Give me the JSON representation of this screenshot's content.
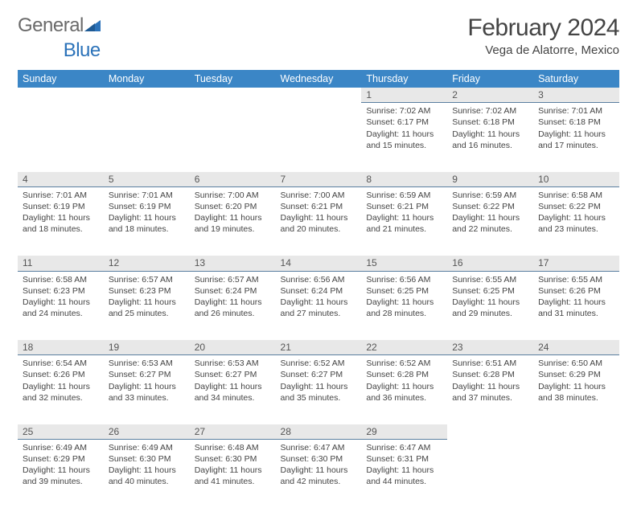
{
  "brand": {
    "part1": "General",
    "part2": "Blue"
  },
  "title": "February 2024",
  "location": "Vega de Alatorre, Mexico",
  "colors": {
    "header_bg": "#3b86c6",
    "header_text": "#ffffff",
    "daynum_bg": "#e8e8e8",
    "daynum_border": "#5a7fa0",
    "text": "#444444",
    "brand_blue": "#2b72b9",
    "brand_gray": "#6a6a6a",
    "page_bg": "#ffffff"
  },
  "daysOfWeek": [
    "Sunday",
    "Monday",
    "Tuesday",
    "Wednesday",
    "Thursday",
    "Friday",
    "Saturday"
  ],
  "weeks": [
    [
      null,
      null,
      null,
      null,
      {
        "n": "1",
        "sr": "Sunrise: 7:02 AM",
        "ss": "Sunset: 6:17 PM",
        "dl1": "Daylight: 11 hours",
        "dl2": "and 15 minutes."
      },
      {
        "n": "2",
        "sr": "Sunrise: 7:02 AM",
        "ss": "Sunset: 6:18 PM",
        "dl1": "Daylight: 11 hours",
        "dl2": "and 16 minutes."
      },
      {
        "n": "3",
        "sr": "Sunrise: 7:01 AM",
        "ss": "Sunset: 6:18 PM",
        "dl1": "Daylight: 11 hours",
        "dl2": "and 17 minutes."
      }
    ],
    [
      {
        "n": "4",
        "sr": "Sunrise: 7:01 AM",
        "ss": "Sunset: 6:19 PM",
        "dl1": "Daylight: 11 hours",
        "dl2": "and 18 minutes."
      },
      {
        "n": "5",
        "sr": "Sunrise: 7:01 AM",
        "ss": "Sunset: 6:19 PM",
        "dl1": "Daylight: 11 hours",
        "dl2": "and 18 minutes."
      },
      {
        "n": "6",
        "sr": "Sunrise: 7:00 AM",
        "ss": "Sunset: 6:20 PM",
        "dl1": "Daylight: 11 hours",
        "dl2": "and 19 minutes."
      },
      {
        "n": "7",
        "sr": "Sunrise: 7:00 AM",
        "ss": "Sunset: 6:21 PM",
        "dl1": "Daylight: 11 hours",
        "dl2": "and 20 minutes."
      },
      {
        "n": "8",
        "sr": "Sunrise: 6:59 AM",
        "ss": "Sunset: 6:21 PM",
        "dl1": "Daylight: 11 hours",
        "dl2": "and 21 minutes."
      },
      {
        "n": "9",
        "sr": "Sunrise: 6:59 AM",
        "ss": "Sunset: 6:22 PM",
        "dl1": "Daylight: 11 hours",
        "dl2": "and 22 minutes."
      },
      {
        "n": "10",
        "sr": "Sunrise: 6:58 AM",
        "ss": "Sunset: 6:22 PM",
        "dl1": "Daylight: 11 hours",
        "dl2": "and 23 minutes."
      }
    ],
    [
      {
        "n": "11",
        "sr": "Sunrise: 6:58 AM",
        "ss": "Sunset: 6:23 PM",
        "dl1": "Daylight: 11 hours",
        "dl2": "and 24 minutes."
      },
      {
        "n": "12",
        "sr": "Sunrise: 6:57 AM",
        "ss": "Sunset: 6:23 PM",
        "dl1": "Daylight: 11 hours",
        "dl2": "and 25 minutes."
      },
      {
        "n": "13",
        "sr": "Sunrise: 6:57 AM",
        "ss": "Sunset: 6:24 PM",
        "dl1": "Daylight: 11 hours",
        "dl2": "and 26 minutes."
      },
      {
        "n": "14",
        "sr": "Sunrise: 6:56 AM",
        "ss": "Sunset: 6:24 PM",
        "dl1": "Daylight: 11 hours",
        "dl2": "and 27 minutes."
      },
      {
        "n": "15",
        "sr": "Sunrise: 6:56 AM",
        "ss": "Sunset: 6:25 PM",
        "dl1": "Daylight: 11 hours",
        "dl2": "and 28 minutes."
      },
      {
        "n": "16",
        "sr": "Sunrise: 6:55 AM",
        "ss": "Sunset: 6:25 PM",
        "dl1": "Daylight: 11 hours",
        "dl2": "and 29 minutes."
      },
      {
        "n": "17",
        "sr": "Sunrise: 6:55 AM",
        "ss": "Sunset: 6:26 PM",
        "dl1": "Daylight: 11 hours",
        "dl2": "and 31 minutes."
      }
    ],
    [
      {
        "n": "18",
        "sr": "Sunrise: 6:54 AM",
        "ss": "Sunset: 6:26 PM",
        "dl1": "Daylight: 11 hours",
        "dl2": "and 32 minutes."
      },
      {
        "n": "19",
        "sr": "Sunrise: 6:53 AM",
        "ss": "Sunset: 6:27 PM",
        "dl1": "Daylight: 11 hours",
        "dl2": "and 33 minutes."
      },
      {
        "n": "20",
        "sr": "Sunrise: 6:53 AM",
        "ss": "Sunset: 6:27 PM",
        "dl1": "Daylight: 11 hours",
        "dl2": "and 34 minutes."
      },
      {
        "n": "21",
        "sr": "Sunrise: 6:52 AM",
        "ss": "Sunset: 6:27 PM",
        "dl1": "Daylight: 11 hours",
        "dl2": "and 35 minutes."
      },
      {
        "n": "22",
        "sr": "Sunrise: 6:52 AM",
        "ss": "Sunset: 6:28 PM",
        "dl1": "Daylight: 11 hours",
        "dl2": "and 36 minutes."
      },
      {
        "n": "23",
        "sr": "Sunrise: 6:51 AM",
        "ss": "Sunset: 6:28 PM",
        "dl1": "Daylight: 11 hours",
        "dl2": "and 37 minutes."
      },
      {
        "n": "24",
        "sr": "Sunrise: 6:50 AM",
        "ss": "Sunset: 6:29 PM",
        "dl1": "Daylight: 11 hours",
        "dl2": "and 38 minutes."
      }
    ],
    [
      {
        "n": "25",
        "sr": "Sunrise: 6:49 AM",
        "ss": "Sunset: 6:29 PM",
        "dl1": "Daylight: 11 hours",
        "dl2": "and 39 minutes."
      },
      {
        "n": "26",
        "sr": "Sunrise: 6:49 AM",
        "ss": "Sunset: 6:30 PM",
        "dl1": "Daylight: 11 hours",
        "dl2": "and 40 minutes."
      },
      {
        "n": "27",
        "sr": "Sunrise: 6:48 AM",
        "ss": "Sunset: 6:30 PM",
        "dl1": "Daylight: 11 hours",
        "dl2": "and 41 minutes."
      },
      {
        "n": "28",
        "sr": "Sunrise: 6:47 AM",
        "ss": "Sunset: 6:30 PM",
        "dl1": "Daylight: 11 hours",
        "dl2": "and 42 minutes."
      },
      {
        "n": "29",
        "sr": "Sunrise: 6:47 AM",
        "ss": "Sunset: 6:31 PM",
        "dl1": "Daylight: 11 hours",
        "dl2": "and 44 minutes."
      },
      null,
      null
    ]
  ]
}
